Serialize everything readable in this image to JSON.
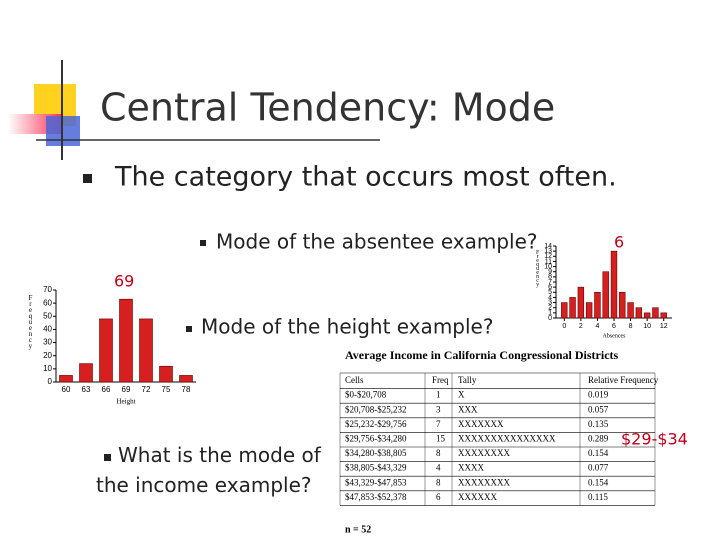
{
  "title": "Central Tendency: Mode",
  "bullets": [
    "The category that occurs most often.",
    "Mode of the absentee example?",
    "Mode of the height example?",
    "What is the mode of the income example?"
  ],
  "answers": [
    "6",
    "69",
    "$29-$34"
  ],
  "height_chart": {
    "type": "bar",
    "y_label": "Frequency",
    "x_label": "Height",
    "color": "#d61f1f",
    "categories": [
      "60",
      "63",
      "66",
      "69",
      "72",
      "75",
      "78"
    ],
    "values": [
      5,
      14,
      48,
      63,
      48,
      12,
      5
    ],
    "ylim": [
      0,
      70
    ],
    "yticks": [
      0,
      10,
      20,
      30,
      40,
      50,
      60,
      70
    ]
  },
  "absence_chart": {
    "type": "bar",
    "y_label": "Frequency",
    "x_label": "Absences",
    "color": "#d61f1f",
    "x": [
      0,
      1,
      2,
      3,
      4,
      5,
      6,
      7,
      8,
      9,
      10,
      11,
      12
    ],
    "values": [
      3,
      4,
      6,
      3,
      5,
      9,
      13,
      5,
      3,
      2,
      1,
      2,
      1
    ],
    "xlim": [
      -1,
      13
    ],
    "xticks": [
      0,
      2,
      4,
      6,
      8,
      10,
      12
    ],
    "ylim": [
      0,
      14
    ],
    "yticks": [
      0,
      1,
      2,
      3,
      4,
      5,
      6,
      7,
      8,
      9,
      10,
      11,
      12,
      13,
      14
    ]
  },
  "table": {
    "title": "Average Income in California Congressional Districts",
    "header": [
      "Cells",
      "Freq",
      "Tally",
      "Relative Frequency"
    ],
    "rows": [
      [
        "$0-$20,708",
        "1",
        "X",
        "0.019"
      ],
      [
        "$20,708-$25,232",
        "3",
        "XXX",
        "0.057"
      ],
      [
        "$25,232-$29,756",
        "7",
        "XXXXXXX",
        "0.135"
      ],
      [
        "$29,756-$34,280",
        "15",
        "XXXXXXXXXXXXXXX",
        "0.289"
      ],
      [
        "$34,280-$38,805",
        "8",
        "XXXXXXXX",
        "0.154"
      ],
      [
        "$38,805-$43,329",
        "4",
        "XXXX",
        "0.077"
      ],
      [
        "$43,329-$47,853",
        "8",
        "XXXXXXXX",
        "0.154"
      ],
      [
        "$47,853-$52,378",
        "6",
        "XXXXXX",
        "0.115"
      ]
    ],
    "footer": "n = 52"
  }
}
